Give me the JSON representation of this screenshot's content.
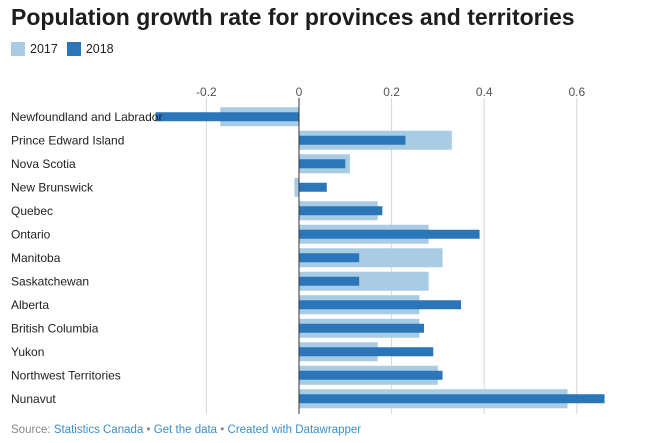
{
  "chart_data": {
    "type": "bar",
    "orientation": "horizontal",
    "title": "Population growth rate for provinces and territories",
    "categories": [
      "Newfoundland and Labrador",
      "Prince Edward Island",
      "Nova Scotia",
      "New Brunswick",
      "Quebec",
      "Ontario",
      "Manitoba",
      "Saskatchewan",
      "Alberta",
      "British Columbia",
      "Yukon",
      "Northwest Territories",
      "Nunavut"
    ],
    "series": [
      {
        "name": "2017",
        "color": "#a8cce4",
        "values": [
          -0.17,
          0.33,
          0.11,
          -0.01,
          0.17,
          0.28,
          0.31,
          0.28,
          0.26,
          0.26,
          0.17,
          0.3,
          0.58
        ]
      },
      {
        "name": "2018",
        "color": "#2a76b8",
        "values": [
          -0.31,
          0.23,
          0.1,
          0.06,
          0.18,
          0.39,
          0.13,
          0.13,
          0.35,
          0.27,
          0.29,
          0.31,
          0.66
        ]
      }
    ],
    "xlim": [
      -0.3,
      0.66
    ],
    "xticks": [
      -0.2,
      0,
      0.2,
      0.4,
      0.6
    ],
    "xtick_labels": [
      "-0.2",
      "0",
      "0.2",
      "0.4",
      "0.6"
    ],
    "grid": true,
    "legend_position": "top-left",
    "xlabel": "",
    "ylabel": ""
  },
  "footer": {
    "source_label": "Source:",
    "source_name": "Statistics Canada",
    "separator": "•",
    "get_data": "Get the data",
    "created_with": "Created with Datawrapper"
  }
}
